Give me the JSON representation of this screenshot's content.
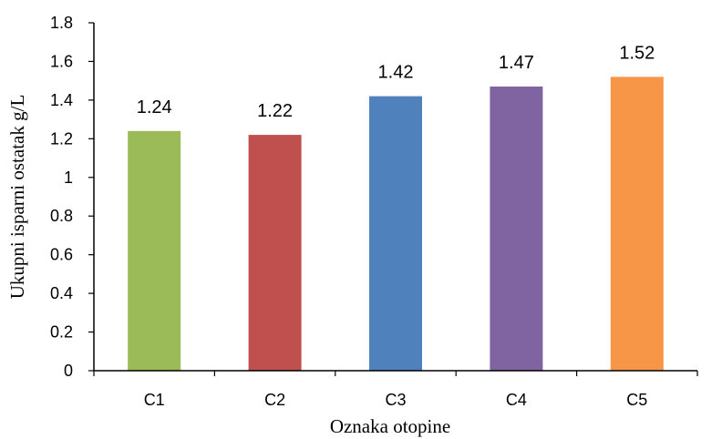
{
  "chart_data": {
    "type": "bar",
    "categories": [
      "C1",
      "C2",
      "C3",
      "C4",
      "C5"
    ],
    "values": [
      1.24,
      1.22,
      1.42,
      1.47,
      1.52
    ],
    "data_labels": [
      "1.24",
      "1.22",
      "1.42",
      "1.47",
      "1.52"
    ],
    "colors": [
      "#9BBB59",
      "#C0504D",
      "#4F81BD",
      "#8064A2",
      "#F79646"
    ],
    "title": "",
    "xlabel": "Oznaka otopine",
    "ylabel": "Ukupni isparni ostatak g/L",
    "ylim": [
      0,
      1.8
    ],
    "yticks": [
      "0",
      "0.2",
      "0.4",
      "0.6",
      "0.8",
      "1",
      "1.2",
      "1.4",
      "1.6",
      "1.8"
    ],
    "grid": false,
    "legend": "none"
  }
}
